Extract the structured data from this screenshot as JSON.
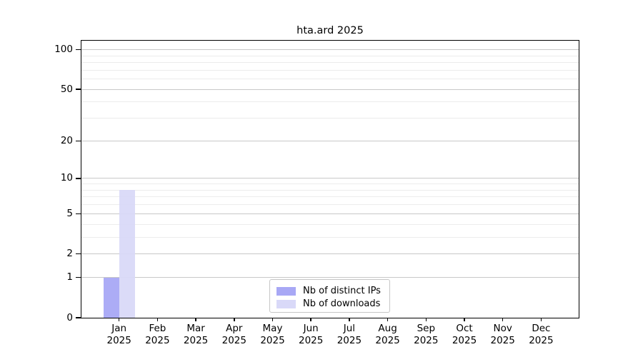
{
  "title": "hta.ard 2025",
  "chart_data": {
    "type": "bar",
    "title": "hta.ard 2025",
    "x_month_labels": [
      "Jan",
      "Feb",
      "Mar",
      "Apr",
      "May",
      "Jun",
      "Jul",
      "Aug",
      "Sep",
      "Oct",
      "Nov",
      "Dec"
    ],
    "x_year_label": "2025",
    "series": [
      {
        "name": "Nb of distinct IPs",
        "color": "#a8a8f5",
        "values": [
          1,
          0,
          0,
          0,
          0,
          0,
          0,
          0,
          0,
          0,
          0,
          0
        ]
      },
      {
        "name": "Nb of downloads",
        "color": "#d9d9f8",
        "values": [
          8,
          0,
          0,
          0,
          0,
          0,
          0,
          0,
          0,
          0,
          0,
          0
        ]
      }
    ],
    "y_axis": {
      "scale": "log1p",
      "major_ticks": [
        0,
        1,
        2,
        5,
        10,
        20,
        50,
        100
      ],
      "major_tick_labels": [
        "0",
        "1",
        "2",
        "5",
        "10",
        "20",
        "50",
        "100"
      ],
      "minor_ticks": [
        3,
        4,
        6,
        7,
        8,
        9,
        30,
        40,
        60,
        70,
        80,
        90
      ],
      "top_value": 117,
      "ylim": [
        0,
        117
      ]
    },
    "legend": {
      "items": [
        "Nb of distinct IPs",
        "Nb of downloads"
      ],
      "position": "lower center"
    },
    "colors": {
      "major_grid": "#c8c8c8",
      "minor_grid": "#ececec",
      "spine": "#000000",
      "text": "#000000"
    },
    "grid": true
  }
}
